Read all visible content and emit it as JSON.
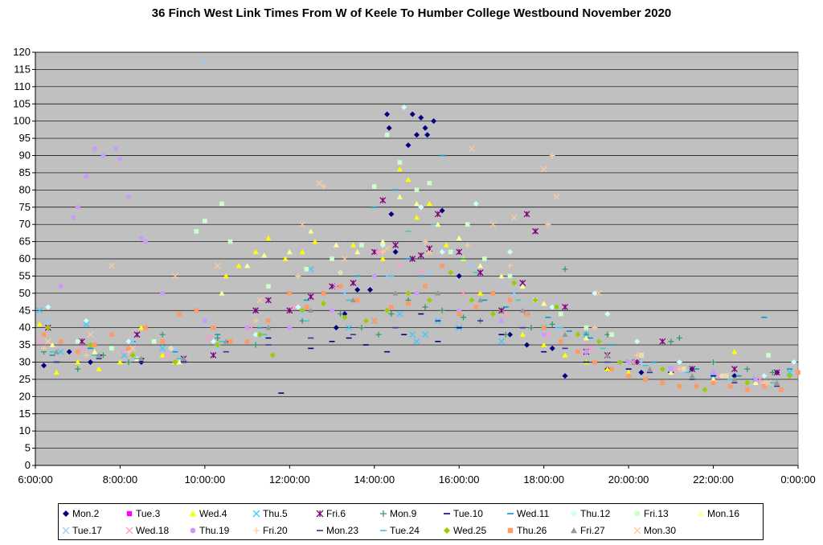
{
  "chart_data": {
    "type": "scatter",
    "title": "36 Finch West Link Times From W of Keele To Humber College Westbound November 2020",
    "xlabel": "",
    "ylabel": "",
    "xlim": [
      6,
      24
    ],
    "ylim": [
      0,
      120
    ],
    "yticks": [
      "0",
      "5",
      "10",
      "15",
      "20",
      "25",
      "30",
      "35",
      "40",
      "45",
      "50",
      "55",
      "60",
      "65",
      "70",
      "75",
      "80",
      "85",
      "90",
      "95",
      "100",
      "105",
      "110",
      "115",
      "120"
    ],
    "xticks": [
      "6:00:00",
      "8:00:00",
      "10:00:00",
      "12:00:00",
      "14:00:00",
      "16:00:00",
      "18:00:00",
      "20:00:00",
      "22:00:00",
      "0:00:00"
    ],
    "grid": "horizontal",
    "legend_position": "bottom",
    "series": [
      {
        "name": "Mon.2",
        "color": "#000080",
        "marker": "diamond",
        "x": [
          6.2,
          6.8,
          7.3,
          8.5,
          13.1,
          13.3,
          13.6,
          13.9,
          14.3,
          14.35,
          14.4,
          14.5,
          14.8,
          14.9,
          15.0,
          15.1,
          15.2,
          15.25,
          15.4,
          15.6,
          16.0,
          17.2,
          17.6,
          18.2,
          18.5,
          19.5,
          20.3,
          21.5,
          22.5,
          23.5
        ],
        "y": [
          29,
          33,
          30,
          30,
          40,
          44,
          51,
          51,
          102,
          98,
          73,
          62,
          93,
          102,
          96,
          101,
          98,
          96,
          100,
          74,
          55,
          38,
          35,
          34,
          26,
          28,
          27,
          28,
          26,
          27
        ]
      },
      {
        "name": "Tue.3",
        "color": "#ff00ff",
        "marker": "square",
        "x": [],
        "y": []
      },
      {
        "name": "Wed.4",
        "color": "#ffff00",
        "marker": "triangle",
        "x": [
          6.1,
          6.5,
          7.0,
          7.5,
          8.0,
          8.5,
          9.0,
          9.3,
          10.5,
          10.8,
          11.2,
          11.5,
          11.9,
          12.3,
          12.6,
          13.0,
          13.5,
          14.2,
          14.6,
          14.8,
          15.0,
          15.3,
          15.7,
          16.1,
          16.5,
          17.0,
          17.5,
          18.0,
          18.5,
          19.0,
          19.5,
          20.0,
          21.0,
          22.0,
          22.5,
          23.0
        ],
        "y": [
          41,
          27,
          30,
          28,
          30,
          40,
          32,
          30,
          55,
          58,
          62,
          66,
          60,
          62,
          65,
          60,
          64,
          60,
          86,
          83,
          72,
          76,
          64,
          60,
          50,
          45,
          38,
          35,
          32,
          30,
          28,
          27,
          27,
          25,
          33,
          24
        ]
      },
      {
        "name": "Thu.5",
        "color": "#33ccff",
        "marker": "x",
        "x": [
          6.1,
          6.6,
          7.2,
          8.1,
          9.0,
          12.5,
          13.4,
          14.0,
          14.6,
          14.9,
          15.0,
          15.2,
          15.5,
          16.0,
          17.0,
          18.0,
          19.0,
          20.0,
          21.0,
          22.0,
          23.0,
          23.8
        ],
        "y": [
          45,
          33,
          41,
          32,
          34,
          57,
          40,
          42,
          44,
          38,
          36,
          38,
          42,
          40,
          36,
          40,
          38,
          30,
          28,
          26,
          25,
          27
        ]
      },
      {
        "name": "Fri.6",
        "color": "#800080",
        "marker": "star",
        "x": [
          6.3,
          7.1,
          8.4,
          9.5,
          10.2,
          11.2,
          11.5,
          12.0,
          12.5,
          13.0,
          13.5,
          14.0,
          14.2,
          14.5,
          14.9,
          15.1,
          15.3,
          15.5,
          16.0,
          16.5,
          17.0,
          17.5,
          17.6,
          17.8,
          18.5,
          19.0,
          19.5,
          20.2,
          20.8,
          21.5,
          22.5,
          23.5
        ],
        "y": [
          40,
          36,
          38,
          31,
          32,
          45,
          48,
          45,
          49,
          52,
          53,
          62,
          77,
          64,
          60,
          61,
          63,
          73,
          62,
          56,
          45,
          53,
          73,
          68,
          46,
          33,
          32,
          30,
          36,
          28,
          28,
          27
        ]
      },
      {
        "name": "Mon.9",
        "color": "#339966",
        "marker": "plus",
        "x": [
          6.2,
          7.0,
          7.6,
          8.2,
          9.0,
          10.3,
          11.2,
          12.3,
          13.2,
          13.7,
          14.1,
          14.4,
          14.8,
          15.2,
          15.6,
          16.1,
          16.5,
          17.1,
          17.7,
          18.2,
          18.5,
          19.0,
          19.5,
          20.1,
          21.0,
          21.2,
          22.0,
          22.8,
          23.4
        ],
        "y": [
          33,
          28,
          32,
          30,
          38,
          37,
          35,
          42,
          44,
          40,
          38,
          44,
          48,
          46,
          45,
          43,
          42,
          38,
          40,
          41,
          57,
          38,
          38,
          30,
          36,
          37,
          30,
          28,
          27
        ]
      },
      {
        "name": "Tue.10",
        "color": "#000080",
        "marker": "dash",
        "x": [
          6.5,
          7.5,
          8.5,
          9.5,
          10.5,
          11.5,
          11.8,
          12.5,
          13.0,
          13.4,
          13.8,
          14.3,
          14.7,
          15.1,
          15.5,
          16.0,
          17.0,
          18.0,
          19.0,
          20.0,
          21.0,
          22.0,
          23.0
        ],
        "y": [
          30,
          32,
          31,
          30,
          36,
          37,
          21,
          34,
          36,
          37,
          35,
          33,
          38,
          44,
          36,
          40,
          38,
          33,
          30,
          28,
          27,
          26,
          25
        ]
      },
      {
        "name": "Wed.11",
        "color": "#0099cc",
        "marker": "dash",
        "x": [
          6.4,
          7.3,
          8.3,
          9.3,
          10.3,
          11.3,
          12.4,
          13.1,
          13.6,
          14.0,
          14.5,
          14.8,
          15.1,
          15.6,
          16.1,
          16.6,
          17.1,
          17.6,
          18.1,
          18.6,
          19.1,
          19.6,
          20.6,
          21.6,
          22.6,
          23.2,
          23.8
        ],
        "y": [
          32,
          34,
          36,
          33,
          38,
          40,
          48,
          52,
          55,
          75,
          80,
          60,
          55,
          90,
          60,
          48,
          46,
          44,
          43,
          39,
          37,
          35,
          30,
          28,
          26,
          43,
          28
        ]
      },
      {
        "name": "Thu.12",
        "color": "#ccffff",
        "marker": "diamond",
        "x": [
          6.3,
          7.2,
          8.2,
          9.2,
          10.2,
          11.2,
          12.2,
          13.2,
          14.2,
          14.7,
          15.1,
          15.6,
          16.4,
          17.2,
          18.2,
          19.2,
          19.5,
          20.2,
          21.2,
          22.2,
          23.2,
          23.9
        ],
        "y": [
          46,
          42,
          36,
          34,
          36,
          38,
          46,
          56,
          64,
          104,
          75,
          62,
          76,
          62,
          46,
          50,
          44,
          36,
          30,
          26,
          26,
          30
        ]
      },
      {
        "name": "Fri.13",
        "color": "#ccffcc",
        "marker": "square",
        "x": [
          6.2,
          7.0,
          7.8,
          8.8,
          9.8,
          10.0,
          10.4,
          10.6,
          11.5,
          12.4,
          13.0,
          13.7,
          14.0,
          14.3,
          14.6,
          15.0,
          15.3,
          15.8,
          16.2,
          16.6,
          17.2,
          17.8,
          18.4,
          19.0,
          19.6,
          20.3,
          21.3,
          22.3,
          23.3
        ],
        "y": [
          38,
          36,
          34,
          36,
          68,
          71,
          76,
          65,
          52,
          57,
          60,
          64,
          81,
          96,
          88,
          80,
          82,
          62,
          70,
          60,
          55,
          48,
          44,
          40,
          38,
          32,
          28,
          26,
          32
        ]
      },
      {
        "name": "Mon.16",
        "color": "#ffff99",
        "marker": "triangle",
        "x": [
          6.4,
          7.4,
          8.4,
          9.4,
          10.4,
          11.0,
          11.4,
          12.0,
          12.5,
          13.1,
          13.6,
          14.2,
          14.6,
          15.0,
          15.5,
          16.0,
          16.5,
          17.0,
          17.5,
          18.0,
          19.0,
          20.0,
          21.0,
          22.0,
          23.0
        ],
        "y": [
          35,
          33,
          31,
          30,
          50,
          58,
          61,
          62,
          68,
          64,
          62,
          65,
          78,
          76,
          70,
          66,
          58,
          55,
          52,
          47,
          37,
          30,
          27,
          25,
          24
        ]
      },
      {
        "name": "Tue.17",
        "color": "#99ccff",
        "marker": "x",
        "x": [
          6.3,
          7.3,
          8.3,
          9.3,
          10.0,
          10.3,
          11.3,
          12.3,
          13.3,
          14.3,
          15.3,
          16.3,
          17.3,
          18.3,
          19.3,
          20.3,
          21.3,
          22.3,
          23.3
        ],
        "y": [
          42,
          38,
          36,
          34,
          117,
          34,
          38,
          44,
          50,
          55,
          56,
          58,
          50,
          40,
          36,
          30,
          27,
          26,
          24
        ]
      },
      {
        "name": "Wed.18",
        "color": "#ff99cc",
        "marker": "x",
        "x": [
          6.1,
          7.1,
          8.1,
          9.1,
          10.1,
          11.1,
          12.1,
          13.1,
          14.1,
          14.6,
          15.1,
          16.1,
          17.1,
          18.1,
          19.1,
          20.1,
          21.1,
          22.1,
          23.1
        ],
        "y": [
          36,
          34,
          33,
          32,
          37,
          40,
          46,
          52,
          62,
          58,
          56,
          50,
          44,
          38,
          34,
          30,
          28,
          26,
          25
        ]
      },
      {
        "name": "Thu.19",
        "color": "#cc99ff",
        "marker": "circle",
        "x": [
          6.6,
          6.9,
          7.0,
          7.2,
          7.4,
          7.6,
          7.9,
          8.0,
          8.2,
          8.5,
          8.6,
          9.0,
          10.0,
          11.0,
          12.0,
          13.0,
          14.0,
          15.0,
          16.0,
          17.0,
          18.0,
          19.0,
          20.0,
          21.0,
          22.0,
          23.0
        ],
        "y": [
          52,
          72,
          75,
          84,
          92,
          90,
          92,
          89,
          78,
          66,
          65,
          50,
          42,
          40,
          40,
          45,
          55,
          50,
          45,
          42,
          38,
          33,
          30,
          28,
          27,
          25
        ]
      },
      {
        "name": "Fri.20",
        "color": "#ffcc99",
        "marker": "plus",
        "x": [
          6.2,
          7.2,
          8.2,
          9.2,
          10.2,
          11.2,
          12.2,
          12.8,
          13.2,
          14.2,
          15.2,
          16.2,
          17.2,
          18.1,
          18.2,
          19.2,
          20.2,
          21.2,
          22.2,
          23.2
        ],
        "y": [
          34,
          32,
          33,
          34,
          40,
          42,
          55,
          81,
          56,
          62,
          65,
          64,
          58,
          70,
          90,
          40,
          32,
          28,
          26,
          24
        ]
      },
      {
        "name": "Mon.23",
        "color": "#333399",
        "marker": "dash",
        "x": [
          6.5,
          7.5,
          8.5,
          9.5,
          10.5,
          11.5,
          12.5,
          13.5,
          14.5,
          15.5,
          16.5,
          17.5,
          18.5,
          19.5,
          20.5,
          21.5,
          22.5,
          23.5
        ],
        "y": [
          30,
          31,
          30,
          30,
          33,
          35,
          37,
          38,
          40,
          42,
          42,
          40,
          34,
          30,
          27,
          25,
          24,
          23
        ]
      },
      {
        "name": "Tue.24",
        "color": "#33cccc",
        "marker": "dash",
        "x": [
          6.4,
          7.4,
          8.4,
          9.4,
          10.4,
          11.4,
          12.4,
          13.4,
          14.4,
          14.8,
          15.4,
          16.4,
          17.4,
          18.4,
          19.4,
          20.4,
          21.4,
          22.4,
          23.4
        ],
        "y": [
          33,
          32,
          31,
          31,
          36,
          38,
          42,
          48,
          55,
          68,
          70,
          56,
          48,
          40,
          34,
          29,
          27,
          25,
          24
        ]
      },
      {
        "name": "Wed.25",
        "color": "#99cc00",
        "marker": "diamond",
        "x": [
          6.3,
          7.3,
          8.3,
          9.3,
          10.3,
          11.3,
          11.6,
          12.3,
          12.8,
          13.3,
          13.8,
          14.3,
          14.8,
          15.3,
          15.8,
          16.3,
          16.8,
          17.3,
          17.8,
          18.3,
          18.8,
          19.3,
          19.8,
          20.8,
          21.8,
          22.8,
          23.8
        ],
        "y": [
          40,
          35,
          32,
          30,
          35,
          38,
          32,
          45,
          47,
          43,
          42,
          45,
          50,
          48,
          56,
          48,
          44,
          53,
          48,
          46,
          38,
          36,
          30,
          28,
          22,
          24,
          26
        ]
      },
      {
        "name": "Thu.26",
        "color": "#ff9966",
        "marker": "square",
        "x": [
          6.2,
          6.6,
          7.0,
          7.4,
          7.8,
          8.2,
          8.6,
          9.0,
          9.4,
          9.8,
          10.2,
          10.6,
          11.0,
          11.5,
          12.0,
          12.4,
          12.8,
          13.2,
          13.6,
          14.0,
          14.4,
          14.8,
          15.2,
          15.6,
          16.0,
          16.4,
          16.8,
          17.2,
          17.6,
          18.0,
          18.4,
          18.8,
          19.2,
          19.6,
          20.0,
          20.4,
          20.8,
          21.2,
          21.6,
          22.0,
          22.4,
          22.8,
          23.2,
          23.6,
          24.0
        ],
        "y": [
          38,
          36,
          33,
          35,
          38,
          34,
          40,
          36,
          44,
          45,
          40,
          36,
          36,
          42,
          50,
          46,
          50,
          52,
          48,
          42,
          46,
          47,
          52,
          58,
          44,
          46,
          50,
          48,
          44,
          40,
          36,
          33,
          30,
          28,
          26,
          25,
          24,
          23,
          23,
          24,
          23,
          22,
          23,
          22,
          27
        ]
      },
      {
        "name": "Fri.27",
        "color": "#969696",
        "marker": "triangle",
        "x": [
          6.5,
          7.5,
          8.5,
          9.5,
          10.5,
          11.5,
          12.5,
          13.5,
          14.5,
          15.5,
          16.5,
          17.5,
          18.5,
          19.5,
          20.5,
          21.5,
          22.5,
          23.5
        ],
        "y": [
          33,
          32,
          31,
          31,
          36,
          40,
          45,
          48,
          50,
          50,
          48,
          45,
          38,
          32,
          28,
          26,
          25,
          24
        ]
      },
      {
        "name": "Mon.30",
        "color": "#ffcc99",
        "marker": "x",
        "x": [
          6.3,
          7.3,
          7.8,
          8.3,
          9.3,
          10.3,
          11.3,
          12.3,
          12.7,
          13.3,
          14.3,
          15.3,
          16.3,
          16.8,
          17.3,
          18.0,
          18.3,
          19.3,
          20.3,
          21.3,
          22.3,
          23.3
        ],
        "y": [
          36,
          38,
          58,
          34,
          55,
          58,
          48,
          70,
          82,
          60,
          63,
          62,
          92,
          70,
          72,
          86,
          78,
          50,
          32,
          28,
          26,
          24
        ]
      }
    ]
  }
}
